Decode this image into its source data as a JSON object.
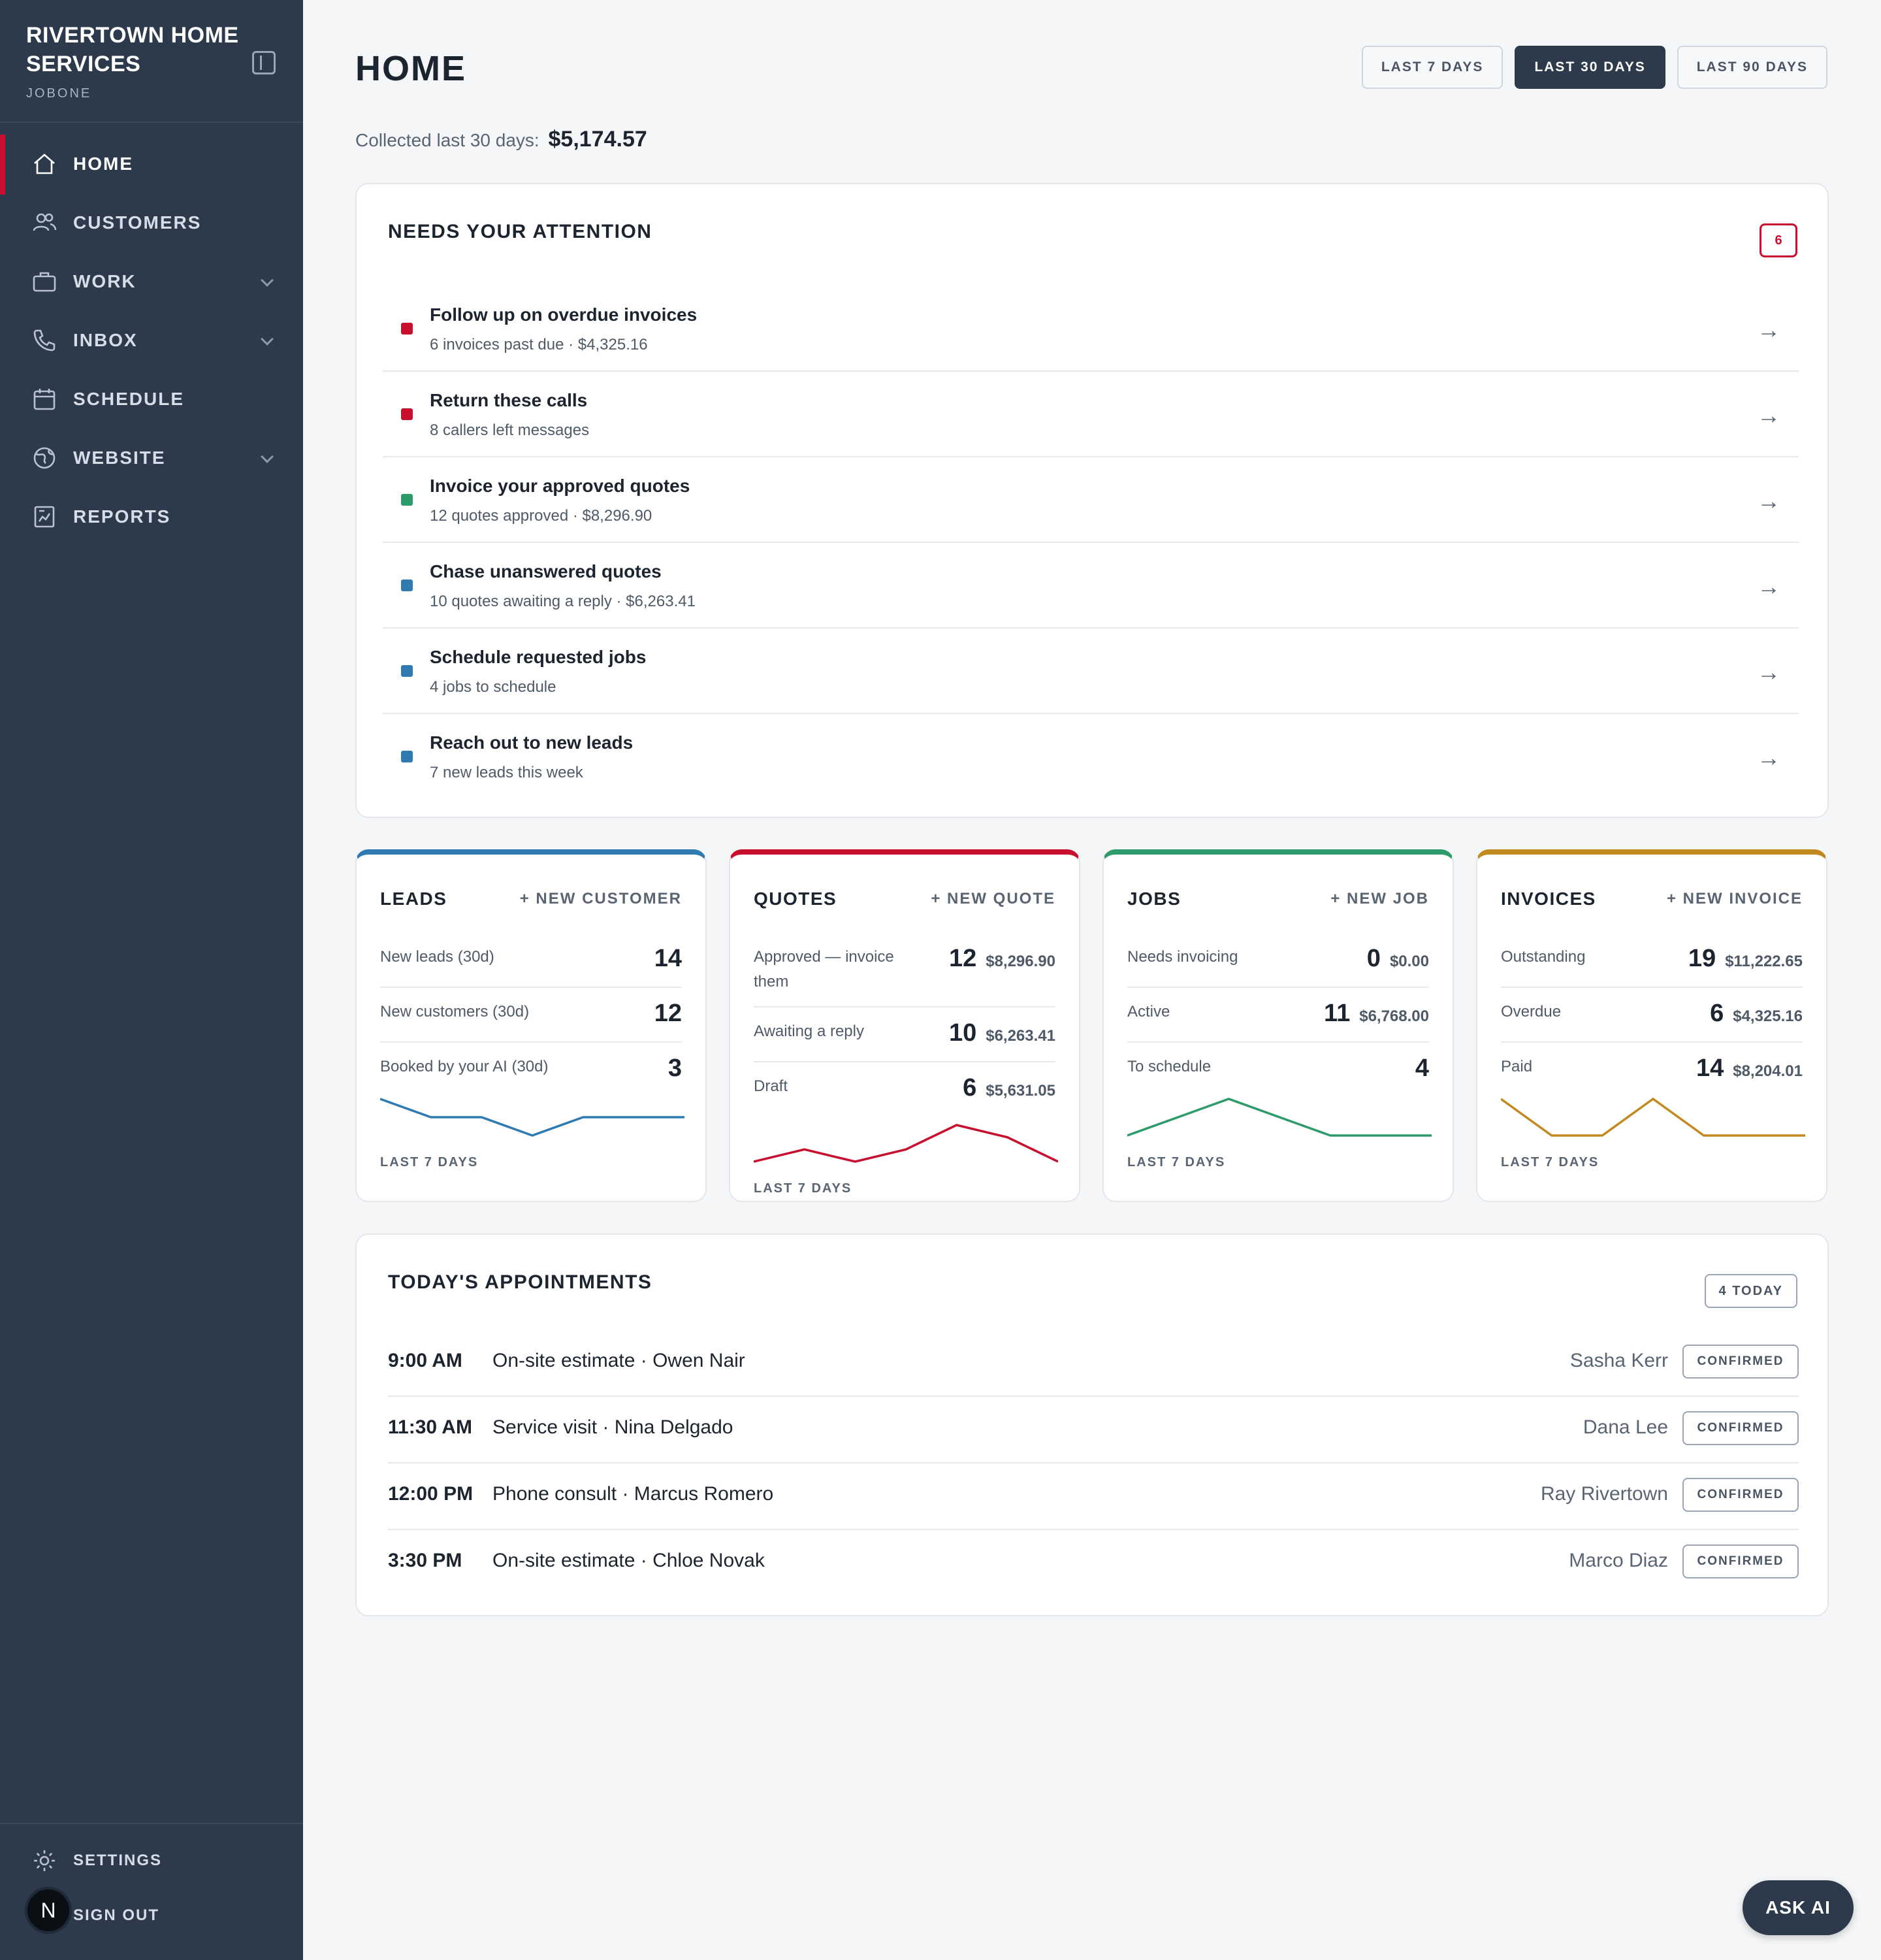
{
  "sidebar": {
    "brand_name": "RIVERTOWN HOME SERVICES",
    "brand_sub": "JOBONE",
    "items": [
      {
        "label": "HOME",
        "icon": "home-icon"
      },
      {
        "label": "CUSTOMERS",
        "icon": "users-icon"
      },
      {
        "label": "WORK",
        "icon": "briefcase-icon"
      },
      {
        "label": "INBOX",
        "icon": "phone-icon"
      },
      {
        "label": "SCHEDULE",
        "icon": "calendar-icon"
      },
      {
        "label": "WEBSITE",
        "icon": "globe-icon"
      },
      {
        "label": "REPORTS",
        "icon": "report-icon"
      }
    ],
    "settings_label": "SETTINGS",
    "signout_label": "SIGN OUT",
    "avatar_letter": "N"
  },
  "header": {
    "title": "HOME",
    "ranges": [
      "LAST 7 DAYS",
      "LAST 30 DAYS",
      "LAST 90 DAYS"
    ],
    "active_range": "LAST 30 DAYS",
    "collected_label": "Collected last 30 days:",
    "collected_value": "$5,174.57"
  },
  "attention": {
    "title": "NEEDS YOUR ATTENTION",
    "count": "6",
    "items": [
      {
        "title": "Follow up on overdue invoices",
        "sub": "6 invoices past due · $4,325.16",
        "color": "#c8102e"
      },
      {
        "title": "Return these calls",
        "sub": "8 callers left messages",
        "color": "#c8102e"
      },
      {
        "title": "Invoice your approved quotes",
        "sub": "12 quotes approved · $8,296.90",
        "color": "#2e9b6a"
      },
      {
        "title": "Chase unanswered quotes",
        "sub": "10 quotes awaiting a reply · $6,263.41",
        "color": "#2f7ab0"
      },
      {
        "title": "Schedule requested jobs",
        "sub": "4 jobs to schedule",
        "color": "#2f7ab0"
      },
      {
        "title": "Reach out to new leads",
        "sub": "7 new leads this week",
        "color": "#2f7ab0"
      }
    ]
  },
  "metrics": {
    "leads": {
      "title": "LEADS",
      "action": "+ NEW CUSTOMER",
      "color": "#2f7ab0",
      "rows": [
        {
          "label": "New leads (30d)",
          "num": "14",
          "amt": ""
        },
        {
          "label": "New customers (30d)",
          "num": "12",
          "amt": ""
        },
        {
          "label": "Booked by your AI (30d)",
          "num": "3",
          "amt": ""
        }
      ],
      "spark_label": "LAST 7 DAYS",
      "spark": [
        3,
        2,
        2,
        1,
        2,
        2,
        2
      ]
    },
    "quotes": {
      "title": "QUOTES",
      "action": "+ NEW QUOTE",
      "color": "#c8102e",
      "rows": [
        {
          "label": "Approved — invoice them",
          "num": "12",
          "amt": "$8,296.90"
        },
        {
          "label": "Awaiting a reply",
          "num": "10",
          "amt": "$6,263.41"
        },
        {
          "label": "Draft",
          "num": "6",
          "amt": "$5,631.05"
        }
      ],
      "spark_label": "LAST 7 DAYS",
      "spark": [
        0,
        1,
        0,
        1,
        3,
        2,
        0
      ]
    },
    "jobs": {
      "title": "JOBS",
      "action": "+ NEW JOB",
      "color": "#2e9b6a",
      "rows": [
        {
          "label": "Needs invoicing",
          "num": "0",
          "amt": "$0.00"
        },
        {
          "label": "Active",
          "num": "11",
          "amt": "$6,768.00"
        },
        {
          "label": "To schedule",
          "num": "4",
          "amt": ""
        }
      ],
      "spark_label": "LAST 7 DAYS",
      "spark": [
        0,
        1,
        2,
        1,
        0,
        0,
        0
      ]
    },
    "invoices": {
      "title": "INVOICES",
      "action": "+ NEW INVOICE",
      "color": "#c2891f",
      "rows": [
        {
          "label": "Outstanding",
          "num": "19",
          "amt": "$11,222.65"
        },
        {
          "label": "Overdue",
          "num": "6",
          "amt": "$4,325.16"
        },
        {
          "label": "Paid",
          "num": "14",
          "amt": "$8,204.01"
        }
      ],
      "spark_label": "LAST 7 DAYS",
      "spark": [
        2,
        0,
        0,
        2,
        0,
        0,
        0
      ]
    }
  },
  "appointments": {
    "title": "TODAY'S APPOINTMENTS",
    "badge": "4 TODAY",
    "items": [
      {
        "time": "9:00 AM",
        "desc": "On-site estimate · Owen Nair",
        "tech": "Sasha Kerr",
        "status": "CONFIRMED"
      },
      {
        "time": "11:30 AM",
        "desc": "Service visit · Nina Delgado",
        "tech": "Dana Lee",
        "status": "CONFIRMED"
      },
      {
        "time": "12:00 PM",
        "desc": "Phone consult · Marcus Romero",
        "tech": "Ray Rivertown",
        "status": "CONFIRMED"
      },
      {
        "time": "3:30 PM",
        "desc": "On-site estimate · Chloe Novak",
        "tech": "Marco Diaz",
        "status": "CONFIRMED"
      }
    ]
  },
  "ask_ai_label": "ASK AI"
}
